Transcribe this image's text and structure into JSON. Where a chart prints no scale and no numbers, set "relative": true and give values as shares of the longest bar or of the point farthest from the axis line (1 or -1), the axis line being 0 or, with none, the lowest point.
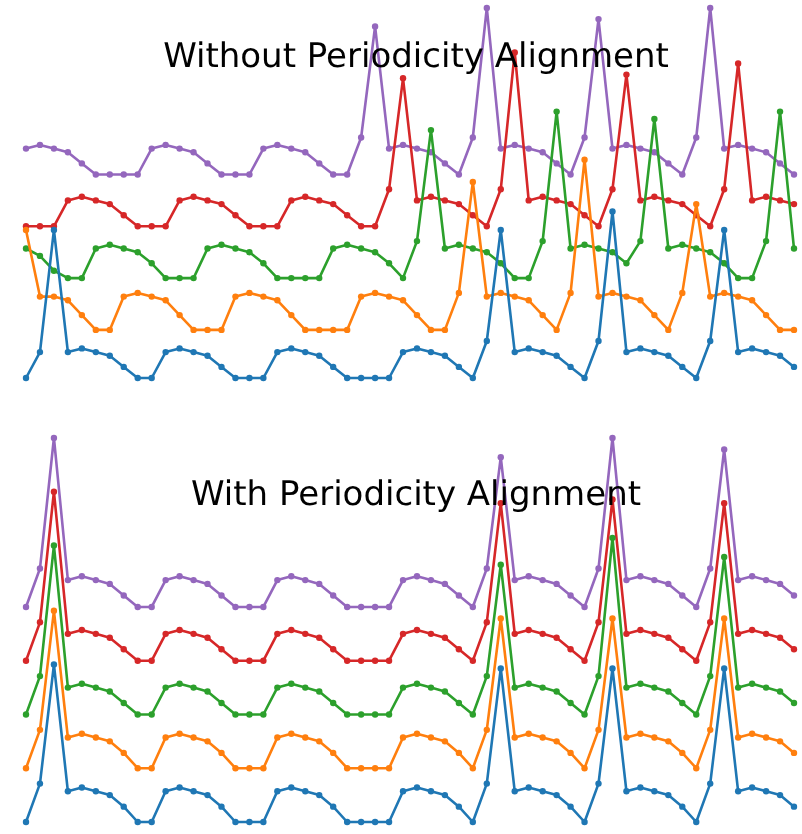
{
  "chart_data": [
    {
      "type": "line",
      "title": "Without Periodicity Alignment",
      "relative": true,
      "marker": "circle",
      "legend": false,
      "grid": false,
      "tick_labels": false,
      "categories": [
        null,
        null,
        null,
        null,
        null,
        null,
        null,
        null,
        null,
        null,
        null,
        null,
        null,
        null,
        null,
        null,
        null,
        null,
        null,
        null,
        null,
        null,
        null,
        null,
        null,
        null,
        null,
        null,
        null,
        null,
        null,
        null,
        null,
        null,
        null,
        null,
        null,
        null,
        null,
        null,
        null,
        null,
        null,
        null,
        null,
        null,
        null,
        null,
        null,
        null,
        null,
        null,
        null,
        null,
        null,
        null
      ],
      "series": [
        {
          "color": "#1f77b4",
          "values": [
            0,
            0.07,
            0.4,
            0.07,
            0.08,
            0.07,
            0.06,
            0.03,
            0,
            0,
            0.07,
            0.08,
            0.07,
            0.06,
            0.03,
            0,
            0,
            0,
            0.07,
            0.08,
            0.07,
            0.06,
            0.03,
            0,
            0,
            0,
            0,
            0.07,
            0.08,
            0.07,
            0.06,
            0.03,
            0,
            0.1,
            0.4,
            0.07,
            0.08,
            0.07,
            0.06,
            0.03,
            0,
            0.1,
            0.45,
            0.07,
            0.08,
            0.07,
            0.06,
            0.03,
            0,
            0.1,
            0.4,
            0.07,
            0.08,
            0.07,
            0.06,
            0.03
          ]
        },
        {
          "color": "#ff7f0e",
          "values": [
            0.4,
            0.22,
            0.22,
            0.21,
            0.17,
            0.13,
            0.13,
            0.22,
            0.23,
            0.22,
            0.21,
            0.17,
            0.13,
            0.13,
            0.13,
            0.22,
            0.23,
            0.22,
            0.21,
            0.17,
            0.13,
            0.13,
            0.13,
            0.13,
            0.22,
            0.23,
            0.22,
            0.21,
            0.17,
            0.13,
            0.13,
            0.23,
            0.53,
            0.22,
            0.23,
            0.22,
            0.21,
            0.17,
            0.13,
            0.23,
            0.59,
            0.22,
            0.23,
            0.22,
            0.21,
            0.17,
            0.13,
            0.23,
            0.47,
            0.22,
            0.23,
            0.22,
            0.21,
            0.17,
            0.13,
            0.13
          ]
        },
        {
          "color": "#2ca02c",
          "values": [
            0.35,
            0.33,
            0.29,
            0.27,
            0.27,
            0.35,
            0.36,
            0.35,
            0.34,
            0.31,
            0.27,
            0.27,
            0.27,
            0.35,
            0.36,
            0.35,
            0.34,
            0.31,
            0.27,
            0.27,
            0.27,
            0.27,
            0.35,
            0.36,
            0.35,
            0.34,
            0.31,
            0.27,
            0.37,
            0.67,
            0.35,
            0.36,
            0.35,
            0.34,
            0.31,
            0.27,
            0.27,
            0.37,
            0.72,
            0.35,
            0.36,
            0.35,
            0.34,
            0.31,
            0.37,
            0.7,
            0.35,
            0.36,
            0.35,
            0.34,
            0.31,
            0.27,
            0.27,
            0.37,
            0.72,
            0.35
          ]
        },
        {
          "color": "#d62728",
          "values": [
            0.41,
            0.41,
            0.41,
            0.48,
            0.49,
            0.48,
            0.47,
            0.44,
            0.41,
            0.41,
            0.41,
            0.48,
            0.49,
            0.48,
            0.47,
            0.44,
            0.41,
            0.41,
            0.41,
            0.48,
            0.49,
            0.48,
            0.47,
            0.44,
            0.41,
            0.41,
            0.51,
            0.81,
            0.48,
            0.49,
            0.48,
            0.47,
            0.44,
            0.41,
            0.51,
            0.88,
            0.48,
            0.49,
            0.48,
            0.47,
            0.44,
            0.41,
            0.51,
            0.82,
            0.48,
            0.49,
            0.48,
            0.47,
            0.44,
            0.41,
            0.51,
            0.85,
            0.48,
            0.49,
            0.48,
            0.47
          ]
        },
        {
          "color": "#9467bd",
          "values": [
            0.62,
            0.63,
            0.62,
            0.61,
            0.58,
            0.55,
            0.55,
            0.55,
            0.55,
            0.62,
            0.63,
            0.62,
            0.61,
            0.58,
            0.55,
            0.55,
            0.55,
            0.62,
            0.63,
            0.62,
            0.61,
            0.58,
            0.55,
            0.55,
            0.65,
            0.95,
            0.62,
            0.63,
            0.62,
            0.61,
            0.58,
            0.55,
            0.65,
            1.0,
            0.62,
            0.63,
            0.62,
            0.61,
            0.58,
            0.55,
            0.65,
            0.97,
            0.62,
            0.63,
            0.62,
            0.61,
            0.58,
            0.55,
            0.65,
            1.0,
            0.62,
            0.63,
            0.62,
            0.61,
            0.58,
            0.55
          ]
        }
      ]
    },
    {
      "type": "line",
      "title": "With Periodicity Alignment",
      "relative": true,
      "marker": "circle",
      "legend": false,
      "grid": false,
      "tick_labels": false,
      "categories": [
        null,
        null,
        null,
        null,
        null,
        null,
        null,
        null,
        null,
        null,
        null,
        null,
        null,
        null,
        null,
        null,
        null,
        null,
        null,
        null,
        null,
        null,
        null,
        null,
        null,
        null,
        null,
        null,
        null,
        null,
        null,
        null,
        null,
        null,
        null,
        null,
        null,
        null,
        null,
        null,
        null,
        null,
        null,
        null,
        null,
        null,
        null,
        null,
        null,
        null,
        null,
        null,
        null,
        null,
        null,
        null
      ],
      "series": [
        {
          "color": "#1f77b4",
          "values": [
            0,
            0.1,
            0.41,
            0.08,
            0.09,
            0.08,
            0.07,
            0.04,
            0,
            0,
            0.08,
            0.09,
            0.08,
            0.07,
            0.04,
            0,
            0,
            0,
            0.08,
            0.09,
            0.08,
            0.07,
            0.04,
            0,
            0,
            0,
            0,
            0.08,
            0.09,
            0.08,
            0.07,
            0.04,
            0,
            0.1,
            0.4,
            0.08,
            0.09,
            0.08,
            0.07,
            0.04,
            0,
            0.1,
            0.4,
            0.08,
            0.09,
            0.08,
            0.07,
            0.04,
            0,
            0.1,
            0.4,
            0.08,
            0.09,
            0.08,
            0.07,
            0.04
          ]
        },
        {
          "color": "#ff7f0e",
          "values": [
            0.14,
            0.24,
            0.55,
            0.22,
            0.23,
            0.22,
            0.21,
            0.18,
            0.14,
            0.14,
            0.22,
            0.23,
            0.22,
            0.21,
            0.18,
            0.14,
            0.14,
            0.14,
            0.22,
            0.23,
            0.22,
            0.21,
            0.18,
            0.14,
            0.14,
            0.14,
            0.14,
            0.22,
            0.23,
            0.22,
            0.21,
            0.18,
            0.14,
            0.24,
            0.53,
            0.22,
            0.23,
            0.22,
            0.21,
            0.18,
            0.14,
            0.24,
            0.53,
            0.22,
            0.23,
            0.22,
            0.21,
            0.18,
            0.14,
            0.24,
            0.53,
            0.22,
            0.23,
            0.22,
            0.21,
            0.18
          ]
        },
        {
          "color": "#2ca02c",
          "values": [
            0.28,
            0.38,
            0.72,
            0.35,
            0.36,
            0.35,
            0.34,
            0.31,
            0.28,
            0.28,
            0.35,
            0.36,
            0.35,
            0.34,
            0.31,
            0.28,
            0.28,
            0.28,
            0.35,
            0.36,
            0.35,
            0.34,
            0.31,
            0.28,
            0.28,
            0.28,
            0.28,
            0.35,
            0.36,
            0.35,
            0.34,
            0.31,
            0.28,
            0.38,
            0.67,
            0.35,
            0.36,
            0.35,
            0.34,
            0.31,
            0.28,
            0.38,
            0.74,
            0.35,
            0.36,
            0.35,
            0.34,
            0.31,
            0.28,
            0.38,
            0.69,
            0.35,
            0.36,
            0.35,
            0.34,
            0.31
          ]
        },
        {
          "color": "#d62728",
          "values": [
            0.42,
            0.52,
            0.86,
            0.49,
            0.5,
            0.49,
            0.48,
            0.45,
            0.42,
            0.42,
            0.49,
            0.5,
            0.49,
            0.48,
            0.45,
            0.42,
            0.42,
            0.42,
            0.49,
            0.5,
            0.49,
            0.48,
            0.45,
            0.42,
            0.42,
            0.42,
            0.42,
            0.49,
            0.5,
            0.49,
            0.48,
            0.45,
            0.42,
            0.52,
            0.83,
            0.49,
            0.5,
            0.49,
            0.48,
            0.45,
            0.42,
            0.52,
            0.84,
            0.49,
            0.5,
            0.49,
            0.48,
            0.45,
            0.42,
            0.52,
            0.83,
            0.49,
            0.5,
            0.49,
            0.48,
            0.45
          ]
        },
        {
          "color": "#9467bd",
          "values": [
            0.56,
            0.66,
            1.0,
            0.63,
            0.64,
            0.63,
            0.62,
            0.59,
            0.56,
            0.56,
            0.63,
            0.64,
            0.63,
            0.62,
            0.59,
            0.56,
            0.56,
            0.56,
            0.63,
            0.64,
            0.63,
            0.62,
            0.59,
            0.56,
            0.56,
            0.56,
            0.56,
            0.63,
            0.64,
            0.63,
            0.62,
            0.59,
            0.56,
            0.66,
            0.95,
            0.63,
            0.64,
            0.63,
            0.62,
            0.59,
            0.56,
            0.66,
            1.0,
            0.63,
            0.64,
            0.63,
            0.62,
            0.59,
            0.56,
            0.66,
            0.97,
            0.63,
            0.64,
            0.63,
            0.62,
            0.59
          ]
        }
      ]
    }
  ]
}
